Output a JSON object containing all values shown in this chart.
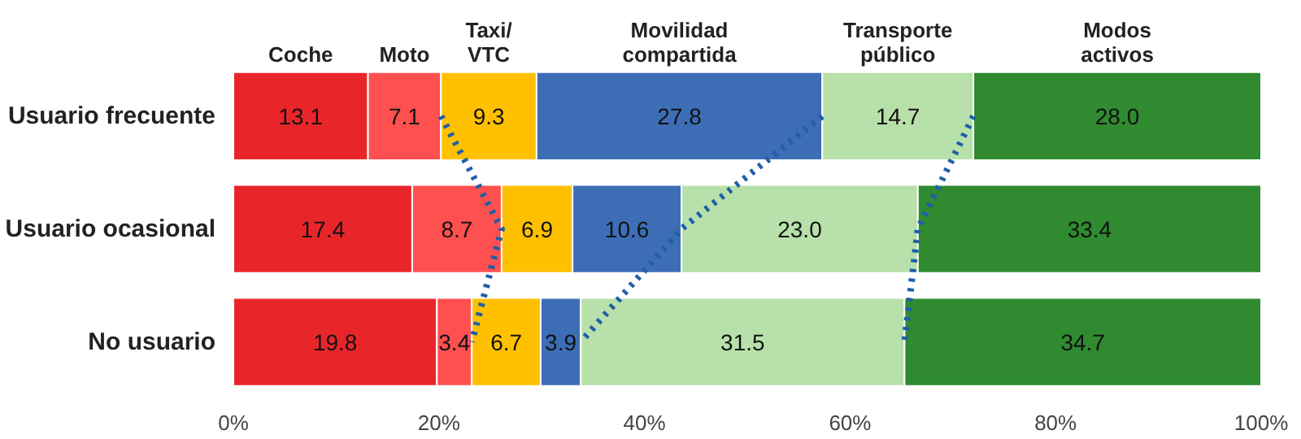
{
  "chart_data": {
    "type": "bar",
    "orientation": "horizontal",
    "stacked": true,
    "categories": [
      "Usuario frecuente",
      "Usuario ocasional",
      "No usuario"
    ],
    "xlim": [
      0,
      100
    ],
    "xticks": [
      {
        "value": 0,
        "label": "0%"
      },
      {
        "value": 20,
        "label": "20%"
      },
      {
        "value": 40,
        "label": "40%"
      },
      {
        "value": 60,
        "label": "60%"
      },
      {
        "value": 80,
        "label": "80%"
      },
      {
        "value": 100,
        "label": "100%"
      }
    ],
    "series": [
      {
        "name": "Coche",
        "color": "#e8262a",
        "values": [
          13.1,
          17.4,
          19.8
        ],
        "value_labels": [
          "13.1",
          "17.4",
          "19.8"
        ]
      },
      {
        "name": "Moto",
        "color": "#ff5050",
        "values": [
          7.1,
          8.7,
          3.4
        ],
        "value_labels": [
          "7.1",
          "8.7",
          "3.4"
        ]
      },
      {
        "name": "Taxi/\nVTC",
        "color": "#ffc000",
        "values": [
          9.3,
          6.9,
          6.7
        ],
        "value_labels": [
          "9.3",
          "6.9",
          "6.7"
        ]
      },
      {
        "name": "Movilidad\ncompartida",
        "color": "#3d6db5",
        "values": [
          27.8,
          10.6,
          3.9
        ],
        "value_labels": [
          "27.8",
          "10.6",
          "3.9"
        ]
      },
      {
        "name": "Transporte\npúblico",
        "color": "#b8e0aa",
        "values": [
          14.7,
          23.0,
          31.5
        ],
        "value_labels": [
          "14.7",
          "23.0",
          "31.5"
        ]
      },
      {
        "name": "Modos\nactivos",
        "color": "#2f8a30",
        "values": [
          28.0,
          33.4,
          34.7
        ],
        "value_labels": [
          "28.0",
          "33.4",
          "34.7"
        ]
      },
      {
        "type": "line",
        "color": "#1f5fa8",
        "line_style": "dotted",
        "values": [
          20.2,
          26.1,
          23.2
        ]
      },
      {
        "type": "line",
        "color": "#1f5fa8",
        "line_style": "dotted",
        "values": [
          57.3,
          43.6,
          33.8
        ]
      },
      {
        "type": "line",
        "color": "#1f5fa8",
        "line_style": "dotted",
        "values": [
          72.0,
          66.6,
          65.3
        ]
      }
    ]
  }
}
